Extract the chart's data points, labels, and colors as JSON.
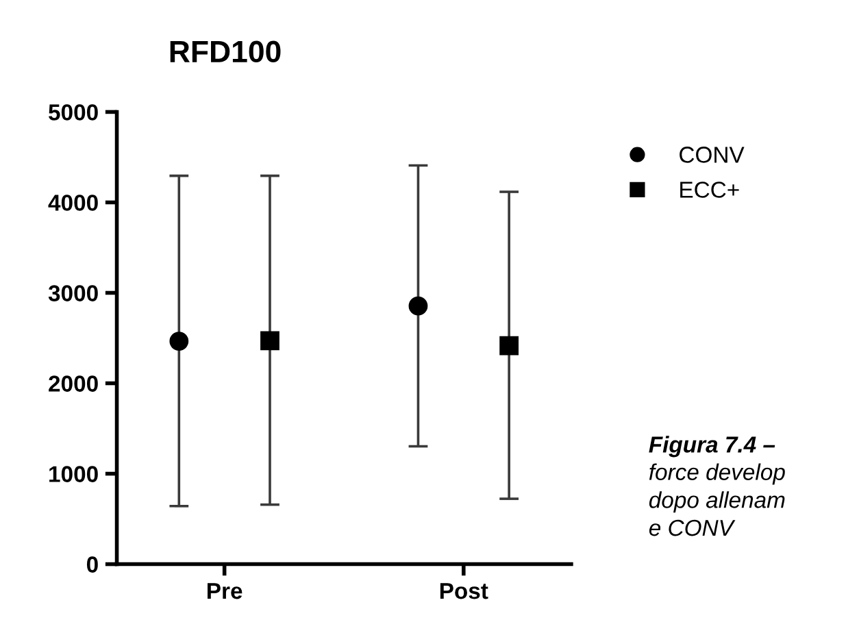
{
  "chart_data": {
    "type": "scatter",
    "title": "RFD100",
    "categories": [
      "Pre",
      "Post"
    ],
    "series": [
      {
        "name": "CONV",
        "color": "#000000",
        "marker": "circle",
        "values": [
          2465,
          2855
        ],
        "errors": [
          [
            642,
            4294
          ],
          [
            1303,
            4409
          ]
        ]
      },
      {
        "name": "ECC+",
        "color": "#000000",
        "marker": "square",
        "values": [
          2470,
          2415
        ],
        "errors": [
          [
            658,
            4294
          ],
          [
            723,
            4117
          ]
        ]
      }
    ],
    "ylim": [
      0,
      5000
    ],
    "yticks": [
      0,
      1000,
      2000,
      3000,
      4000,
      5000
    ],
    "grid": false,
    "legend": "top right",
    "annotations": [
      "Figura 7.4 –",
      "force develop\ndopo allenam\ne CONV"
    ]
  }
}
